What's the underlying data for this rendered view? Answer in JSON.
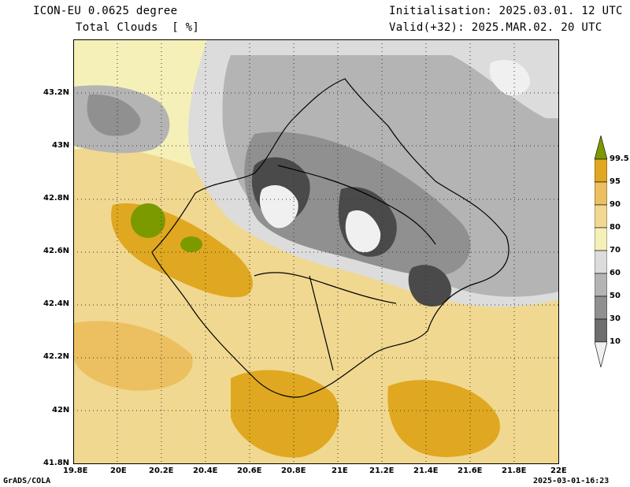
{
  "header": {
    "model_line": "ICON-EU 0.0625 degree",
    "field_line": "Total Clouds  [ %]",
    "init_line": "Initialisation: 2025.03.01. 12 UTC",
    "valid_line": "Valid(+32): 2025.MAR.02. 20 UTC"
  },
  "footer": {
    "credit": "GrADS/COLA",
    "timestamp": "2025-03-01-16:23"
  },
  "axes": {
    "lat_labels": [
      "43.2N",
      "43N",
      "42.8N",
      "42.6N",
      "42.4N",
      "42.2N",
      "42N",
      "41.8N"
    ],
    "lon_labels": [
      "19.8E",
      "20E",
      "20.2E",
      "20.4E",
      "20.6E",
      "20.8E",
      "21E",
      "21.2E",
      "21.4E",
      "21.6E",
      "21.8E",
      "22E"
    ]
  },
  "colorbar": {
    "labels": [
      "99.5",
      "95",
      "90",
      "80",
      "70",
      "60",
      "50",
      "30",
      "10"
    ],
    "colors": [
      "#7a9a00",
      "#e0a820",
      "#ecc060",
      "#f2d890",
      "#f5f0b8",
      "#dcdcdc",
      "#b4b4b4",
      "#909090",
      "#6e6e6e",
      "#4a4a4a",
      "#f0f0f0"
    ]
  }
}
